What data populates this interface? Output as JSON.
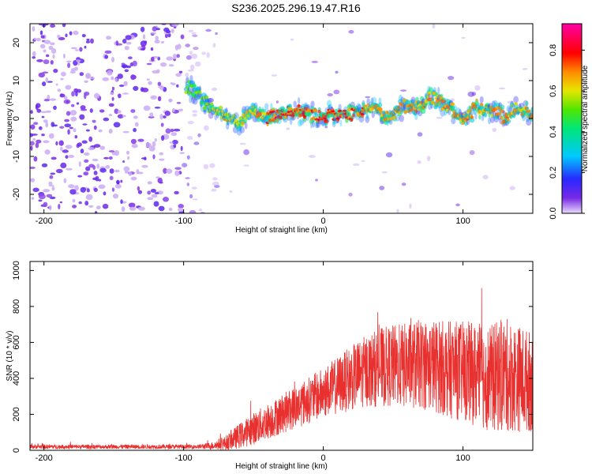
{
  "title": "S236.2025.296.19.47.R16",
  "chart_data": [
    {
      "type": "heatmap",
      "name": "spectrogram",
      "xlabel": "Height of straight line (km)",
      "ylabel": "Frequency (Hz)",
      "xlim": [
        -210,
        150
      ],
      "ylim": [
        -25,
        25
      ],
      "xticks": [
        -200,
        -100,
        0,
        100
      ],
      "yticks": [
        -20,
        -10,
        0,
        10,
        20
      ],
      "colorbar": {
        "label": "Normalized spectral amplitude",
        "range": [
          0,
          0.93
        ],
        "ticks": [
          0.0,
          0.2,
          0.4,
          0.6,
          0.8
        ]
      },
      "ridge": {
        "description_points_x": [
          -95,
          -80,
          -60,
          -50,
          -40,
          -20,
          0,
          20,
          30,
          35,
          45,
          55,
          70,
          78,
          90,
          100,
          110,
          125,
          130,
          140,
          150
        ],
        "frequency_y": [
          8,
          3,
          -1,
          2,
          0,
          2,
          1,
          1,
          2,
          4,
          0,
          3,
          3,
          6,
          3,
          0,
          3,
          2,
          0,
          3,
          1
        ]
      }
    },
    {
      "type": "line",
      "name": "snr",
      "xlabel": "Height of straight line (km)",
      "ylabel": "SNR (10 * v/v)",
      "xlim": [
        -210,
        150
      ],
      "ylim": [
        0,
        1050
      ],
      "xticks": [
        -200,
        -100,
        0,
        100
      ],
      "yticks": [
        0,
        200,
        400,
        600,
        800,
        1000
      ],
      "color": "#e8302e",
      "envelope": {
        "x": [
          -210,
          -90,
          -80,
          -70,
          -60,
          -50,
          -40,
          -30,
          -20,
          -10,
          0,
          10,
          20,
          30,
          40,
          50,
          60,
          70,
          80,
          90,
          100,
          110,
          120,
          130,
          140,
          150
        ],
        "mean": [
          20,
          20,
          25,
          40,
          80,
          120,
          160,
          200,
          240,
          280,
          320,
          360,
          400,
          440,
          460,
          470,
          470,
          480,
          470,
          450,
          440,
          420,
          400,
          420,
          400,
          380
        ],
        "spread": [
          12,
          12,
          20,
          40,
          70,
          90,
          100,
          110,
          120,
          130,
          140,
          160,
          180,
          200,
          220,
          230,
          240,
          250,
          260,
          270,
          280,
          290,
          300,
          320,
          300,
          280
        ]
      }
    }
  ]
}
